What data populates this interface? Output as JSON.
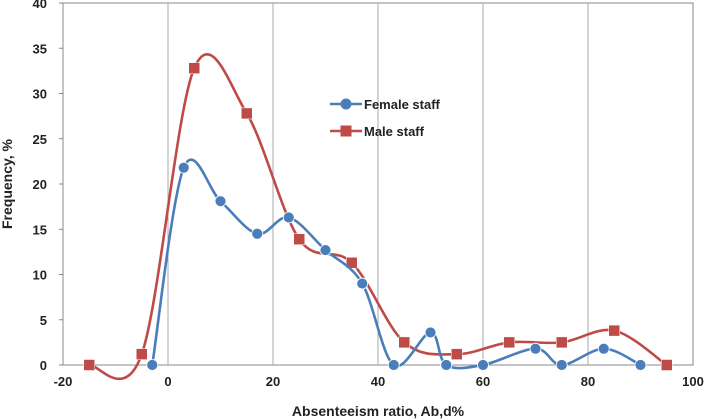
{
  "chart_data": {
    "type": "line",
    "smooth": true,
    "title": "",
    "xlabel": "Absenteeism ratio, Ab,d%",
    "ylabel": "Frequency, %",
    "xlim": [
      -20,
      100
    ],
    "ylim": [
      0,
      40
    ],
    "x_ticks": [
      -20,
      0,
      20,
      40,
      60,
      80,
      100
    ],
    "y_ticks": [
      0,
      5,
      10,
      15,
      20,
      25,
      30,
      35,
      40
    ],
    "grid": "vertical",
    "legend_position": "center-upper",
    "series": [
      {
        "name": "Female staff",
        "marker": "circle",
        "color": "#4a7ebb",
        "x": [
          -3,
          3,
          10,
          17,
          23,
          30,
          37,
          43,
          50,
          53,
          60,
          70,
          75,
          83,
          90
        ],
        "y": [
          0,
          21.8,
          18.1,
          14.5,
          16.3,
          12.7,
          9.0,
          0,
          3.6,
          0,
          0,
          1.8,
          0,
          1.8,
          0
        ]
      },
      {
        "name": "Male staff",
        "marker": "square",
        "color": "#be4b48",
        "x": [
          -15,
          -5,
          5,
          15,
          25,
          35,
          45,
          55,
          65,
          75,
          85,
          95
        ],
        "y": [
          0,
          1.2,
          32.8,
          27.8,
          13.9,
          11.3,
          2.5,
          1.2,
          2.5,
          2.5,
          3.8,
          0
        ]
      }
    ]
  }
}
